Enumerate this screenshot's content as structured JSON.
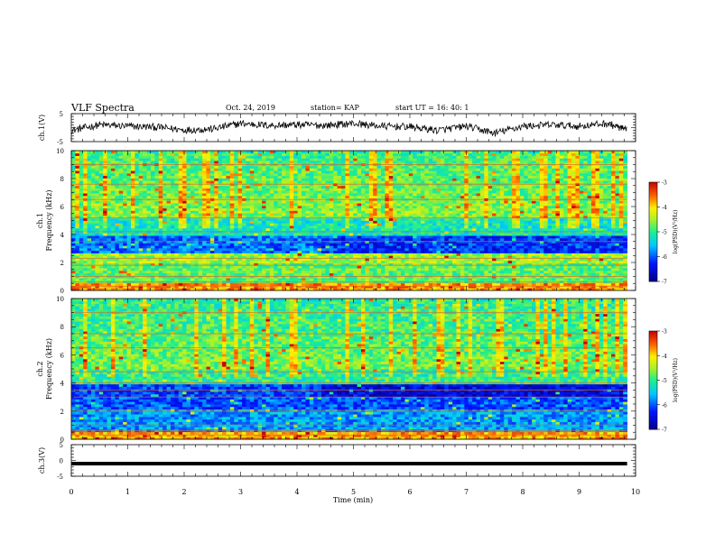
{
  "header": {
    "title": "VLF Spectra",
    "date": "Oct. 24, 2019",
    "station": "station= KAP",
    "start": "start  UT =   16: 40: 1"
  },
  "chart_data": [
    {
      "type": "line",
      "ylabel": "ch.1(V)",
      "ylim": [
        -5,
        5
      ],
      "yticks": [
        "5",
        "-5"
      ],
      "xlim": [
        0,
        10
      ],
      "series": [
        {
          "x": [
            0,
            0.5,
            1.0,
            1.5,
            2.0,
            2.5,
            3.0,
            3.5,
            4.0,
            4.5,
            5.0,
            5.5,
            6.0,
            6.5,
            7.0,
            7.5,
            8.0,
            8.5,
            9.0,
            9.5,
            9.85
          ],
          "values": [
            -1.0,
            1.0,
            0.5,
            0.2,
            -0.8,
            -0.5,
            1.5,
            0.8,
            1.0,
            0.8,
            1.5,
            0.5,
            0.3,
            -1.0,
            0.5,
            -2.0,
            0.5,
            1.0,
            0.5,
            1.5,
            -1.0
          ]
        }
      ]
    },
    {
      "type": "heatmap",
      "ylabel": "ch.1 Frequency (kHz)",
      "ylim": [
        0,
        10
      ],
      "yticks": [
        "0",
        "2",
        "4",
        "6",
        "8",
        "10"
      ],
      "xlim": [
        0,
        10
      ],
      "colorbar": {
        "label": "log(PSD)(V²/Hz)",
        "range": [
          -7,
          -3
        ],
        "ticks": [
          "-3",
          "-4",
          "-5",
          "-6",
          "-7"
        ]
      },
      "lines_kHz": [
        0.3,
        0.6,
        1.0,
        1.8,
        2.3,
        3.5,
        4.2,
        5.2,
        6.5,
        7.6,
        9.0
      ]
    },
    {
      "type": "heatmap",
      "ylabel": "ch.2 Frequency (kHz)",
      "ylim": [
        0,
        10
      ],
      "yticks": [
        "0",
        "2",
        "4",
        "6",
        "8",
        "10"
      ],
      "xlim": [
        0,
        10
      ],
      "colorbar": {
        "label": "log(PSD)(V²/Hz)",
        "range": [
          -7,
          -3
        ],
        "ticks": [
          "-3",
          "-4",
          "-5",
          "-6",
          "-7"
        ]
      },
      "lines_kHz": [
        0.3,
        0.6,
        1.0,
        2.0,
        3.0,
        3.5,
        4.0,
        4.8,
        6.5,
        7.5,
        9.0
      ]
    },
    {
      "type": "line",
      "ylabel": "ch.3(V)",
      "ylim": [
        -5,
        5
      ],
      "yticks": [
        "5",
        "0",
        "-5"
      ],
      "xlim": [
        0,
        10
      ],
      "xlabel": "Time  (min)",
      "xticks": [
        "0",
        "1",
        "2",
        "3",
        "4",
        "5",
        "6",
        "7",
        "8",
        "9",
        "10"
      ],
      "series": [
        {
          "x": [
            0,
            9.85
          ],
          "values": [
            -1.0,
            -1.0
          ]
        }
      ]
    }
  ]
}
